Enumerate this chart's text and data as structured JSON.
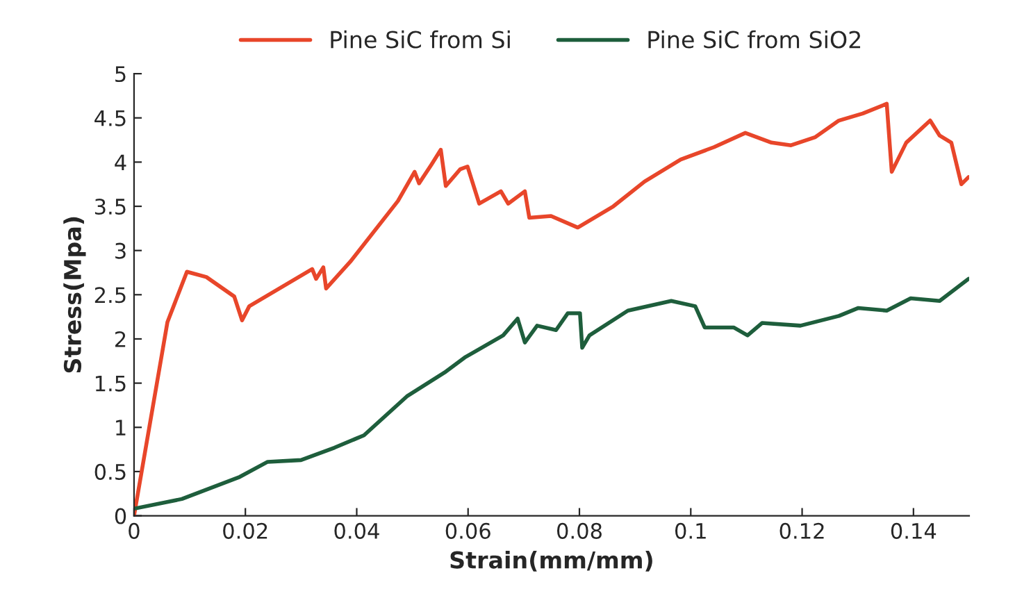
{
  "chart_data": {
    "type": "line",
    "xlabel": "Strain(mm/mm)",
    "ylabel": "Stress(Mpa)",
    "xlim": [
      0,
      0.15
    ],
    "xticks": [
      0,
      0.02,
      0.04,
      0.06,
      0.08,
      0.1,
      0.12,
      0.14
    ],
    "ylim": [
      0,
      5
    ],
    "yticks": [
      0,
      0.5,
      1,
      1.5,
      2,
      2.5,
      3,
      3.5,
      4,
      4.5,
      5
    ],
    "grid": false,
    "legend": "top",
    "marker": "none",
    "line_style": "solid",
    "series": [
      {
        "name": "Pine SiC from Si",
        "color": "#e8462a",
        "x": [
          0,
          0.006,
          0.0095,
          0.013,
          0.018,
          0.0194,
          0.0207,
          0.032,
          0.0327,
          0.034,
          0.0345,
          0.0388,
          0.0474,
          0.0504,
          0.0512,
          0.0534,
          0.0551,
          0.056,
          0.0586,
          0.0599,
          0.062,
          0.0659,
          0.0672,
          0.0702,
          0.071,
          0.0749,
          0.0797,
          0.0861,
          0.0917,
          0.0982,
          0.1042,
          0.1098,
          0.1145,
          0.118,
          0.1223,
          0.1266,
          0.1309,
          0.1352,
          0.1361,
          0.1387,
          0.143,
          0.1447,
          0.1468,
          0.1486,
          0.1499
        ],
        "values": [
          0,
          2.19,
          2.76,
          2.7,
          2.48,
          2.21,
          2.37,
          2.79,
          2.68,
          2.81,
          2.57,
          2.87,
          3.56,
          3.89,
          3.76,
          3.97,
          4.14,
          3.73,
          3.92,
          3.95,
          3.53,
          3.67,
          3.53,
          3.67,
          3.37,
          3.39,
          3.26,
          3.5,
          3.78,
          4.03,
          4.17,
          4.33,
          4.22,
          4.19,
          4.28,
          4.47,
          4.55,
          4.66,
          3.89,
          4.22,
          4.47,
          4.3,
          4.22,
          3.75,
          3.83
        ]
      },
      {
        "name": "Pine SiC from SiO2",
        "color": "#1e5e3c",
        "x": [
          0,
          0.0086,
          0.019,
          0.024,
          0.03,
          0.036,
          0.0413,
          0.049,
          0.056,
          0.0594,
          0.0663,
          0.0689,
          0.0702,
          0.0724,
          0.0758,
          0.0779,
          0.0801,
          0.0805,
          0.0818,
          0.0887,
          0.0965,
          0.1008,
          0.1025,
          0.1077,
          0.1102,
          0.1128,
          0.1197,
          0.1266,
          0.1301,
          0.1352,
          0.1395,
          0.1447,
          0.1499
        ],
        "values": [
          0.08,
          0.19,
          0.44,
          0.61,
          0.63,
          0.77,
          0.91,
          1.35,
          1.63,
          1.79,
          2.04,
          2.23,
          1.96,
          2.15,
          2.1,
          2.29,
          2.29,
          1.9,
          2.04,
          2.32,
          2.43,
          2.37,
          2.13,
          2.13,
          2.04,
          2.18,
          2.15,
          2.26,
          2.35,
          2.32,
          2.46,
          2.43,
          2.68
        ]
      }
    ]
  }
}
